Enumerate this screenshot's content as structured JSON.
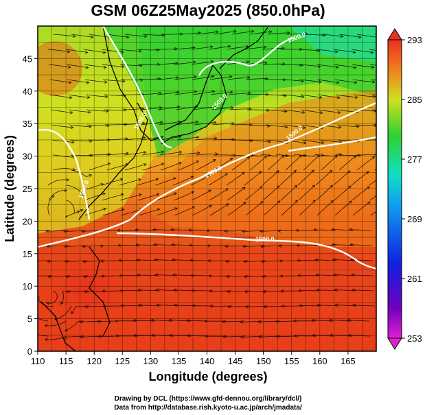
{
  "title": "GSM 06Z25May2025 (850.0hPa)",
  "xlabel": "Longitude (degrees)",
  "ylabel": "Latitude  (degrees)",
  "x_ticks": [
    "110",
    "115",
    "120",
    "125",
    "130",
    "135",
    "140",
    "145",
    "150",
    "155",
    "160",
    "165"
  ],
  "y_ticks": [
    "0",
    "5",
    "10",
    "15",
    "20",
    "25",
    "30",
    "35",
    "40",
    "45"
  ],
  "colorbar_ticks": [
    "293",
    "285",
    "277",
    "269",
    "261",
    "253"
  ],
  "contour_labels": [
    "1500.0",
    "1500.0",
    "1500.0",
    "1500.0",
    "1500.0",
    "1500.0",
    "1500.0"
  ],
  "credits": {
    "line1": "Drawing by DCL (https://www.gfd-dennou.org/library/dcl/)",
    "line2": "Data from http://database.rish.kyoto-u.ac.jp/arch/jmadata/"
  },
  "colors": {
    "warm": "#e8401a",
    "orange": "#f07a1a",
    "yellow": "#e8e020",
    "green": "#30d030",
    "contour": "#ffffff"
  }
}
